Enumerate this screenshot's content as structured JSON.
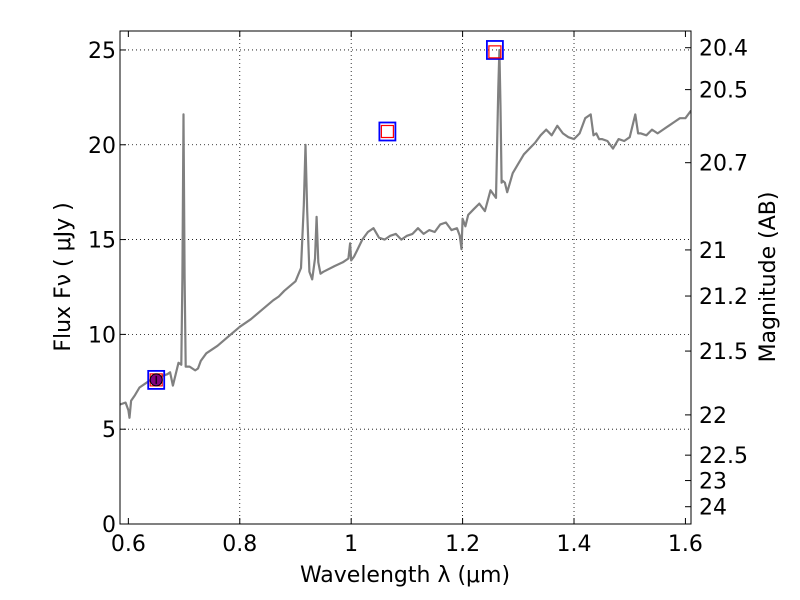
{
  "chart_data": {
    "type": "line",
    "title": "",
    "xlabel": "Wavelength  λ (μm)",
    "ylabel": "Flux  Fν  ( μJy )",
    "ylabel_right": "Magnitude (AB)",
    "xlim": [
      0.585,
      1.61
    ],
    "ylim": [
      0,
      26
    ],
    "grid": true,
    "x_ticks": [
      0.6,
      0.8,
      1.0,
      1.2,
      1.4,
      1.6
    ],
    "x_tick_labels": [
      "0.6",
      "0.8",
      "1",
      "1.2",
      "1.4",
      "1.6"
    ],
    "y_ticks": [
      0,
      5,
      10,
      15,
      20,
      25
    ],
    "y_tick_labels": [
      "0",
      "5",
      "10",
      "15",
      "20",
      "25"
    ],
    "right_ticks": [
      {
        "label": "20.4",
        "value": 20.4
      },
      {
        "label": "20.5",
        "value": 20.5
      },
      {
        "label": "20.7",
        "value": 20.7
      },
      {
        "label": "21",
        "value": 21
      },
      {
        "label": "21.2",
        "value": 21.2
      },
      {
        "label": "21.5",
        "value": 21.5
      },
      {
        "label": "22",
        "value": 22
      },
      {
        "label": "22.5",
        "value": 22.5
      },
      {
        "label": "23",
        "value": 23
      },
      {
        "label": "24",
        "value": 24
      }
    ],
    "series": [
      {
        "name": "spectrum",
        "color": "#808080",
        "x": [
          0.585,
          0.595,
          0.6,
          0.602,
          0.605,
          0.612,
          0.62,
          0.63,
          0.64,
          0.65,
          0.66,
          0.67,
          0.675,
          0.68,
          0.69,
          0.695,
          0.697,
          0.699,
          0.701,
          0.703,
          0.71,
          0.72,
          0.725,
          0.73,
          0.74,
          0.76,
          0.78,
          0.8,
          0.82,
          0.84,
          0.86,
          0.87,
          0.88,
          0.9,
          0.91,
          0.915,
          0.918,
          0.921,
          0.925,
          0.93,
          0.935,
          0.938,
          0.941,
          0.945,
          0.95,
          0.97,
          0.985,
          0.995,
          0.998,
          1.0,
          1.005,
          1.01,
          1.02,
          1.03,
          1.04,
          1.05,
          1.06,
          1.07,
          1.08,
          1.09,
          1.1,
          1.11,
          1.12,
          1.13,
          1.14,
          1.15,
          1.16,
          1.17,
          1.18,
          1.19,
          1.195,
          1.198,
          1.2,
          1.205,
          1.21,
          1.22,
          1.23,
          1.24,
          1.25,
          1.26,
          1.264,
          1.266,
          1.268,
          1.27,
          1.272,
          1.276,
          1.28,
          1.29,
          1.3,
          1.31,
          1.32,
          1.33,
          1.34,
          1.35,
          1.36,
          1.37,
          1.38,
          1.39,
          1.4,
          1.41,
          1.42,
          1.43,
          1.435,
          1.44,
          1.445,
          1.45,
          1.46,
          1.47,
          1.48,
          1.49,
          1.5,
          1.51,
          1.515,
          1.52,
          1.53,
          1.54,
          1.55,
          1.56,
          1.57,
          1.58,
          1.59,
          1.6,
          1.61
        ],
        "y": [
          6.3,
          6.4,
          6.0,
          5.6,
          6.5,
          6.8,
          7.2,
          7.4,
          7.6,
          7.6,
          7.8,
          7.9,
          8.0,
          7.3,
          8.5,
          8.4,
          13.0,
          21.6,
          13.0,
          8.3,
          8.3,
          8.1,
          8.2,
          8.6,
          9.0,
          9.4,
          9.9,
          10.4,
          10.8,
          11.3,
          11.8,
          12.0,
          12.3,
          12.8,
          13.5,
          16.8,
          20.0,
          16.5,
          13.3,
          12.9,
          14.0,
          16.2,
          13.8,
          13.2,
          13.3,
          13.6,
          13.8,
          14.0,
          14.8,
          13.9,
          14.1,
          14.4,
          15.0,
          15.4,
          15.6,
          15.1,
          15.0,
          15.2,
          15.3,
          15.0,
          15.2,
          15.3,
          15.6,
          15.3,
          15.5,
          15.4,
          15.8,
          15.9,
          15.5,
          15.6,
          15.2,
          14.5,
          16.1,
          15.7,
          16.3,
          16.6,
          16.9,
          16.5,
          17.6,
          17.2,
          23.0,
          25.0,
          22.0,
          18.0,
          18.1,
          18.0,
          17.5,
          18.5,
          19.0,
          19.5,
          19.8,
          20.1,
          20.5,
          20.8,
          20.5,
          21.0,
          20.6,
          20.4,
          20.3,
          20.6,
          21.4,
          21.6,
          20.5,
          20.6,
          20.3,
          20.3,
          20.2,
          19.8,
          20.3,
          20.2,
          20.4,
          21.6,
          20.6,
          20.6,
          20.5,
          20.8,
          20.6,
          20.8,
          21.0,
          21.2,
          21.4,
          21.4,
          21.8
        ]
      }
    ],
    "markers": [
      {
        "name": "photometry-1",
        "x": 0.65,
        "y": 7.6,
        "model_y": 7.6,
        "has_filled_point": true,
        "model_color": "#ff0000",
        "observed_color": "#0000ff",
        "point_color": "#800080"
      },
      {
        "name": "photometry-2",
        "x": 1.065,
        "y": 20.7,
        "model_y": 20.7,
        "has_filled_point": false,
        "model_color": "#ff0000",
        "observed_color": "#0000ff",
        "point_color": "#800080"
      },
      {
        "name": "photometry-3",
        "x": 1.258,
        "y": 25.0,
        "model_y": 24.9,
        "has_filled_point": false,
        "model_color": "#ff0000",
        "observed_color": "#0000ff",
        "point_color": "#800080"
      }
    ]
  }
}
